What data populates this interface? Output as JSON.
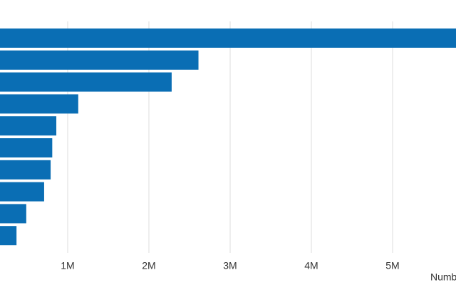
{
  "chart_data": {
    "type": "barh",
    "x_label": "Numb",
    "values": [
      5900000,
      2610000,
      2280000,
      1130000,
      860000,
      810000,
      790000,
      710000,
      490000,
      370000
    ],
    "color": "#0a6eb4",
    "xlim": [
      0,
      6000000
    ],
    "xticks": [
      {
        "value": 1000000,
        "label": "1M"
      },
      {
        "value": 2000000,
        "label": "2M"
      },
      {
        "value": 3000000,
        "label": "3M"
      },
      {
        "value": 4000000,
        "label": "4M"
      },
      {
        "value": 5000000,
        "label": "5M"
      }
    ],
    "grid": true
  }
}
